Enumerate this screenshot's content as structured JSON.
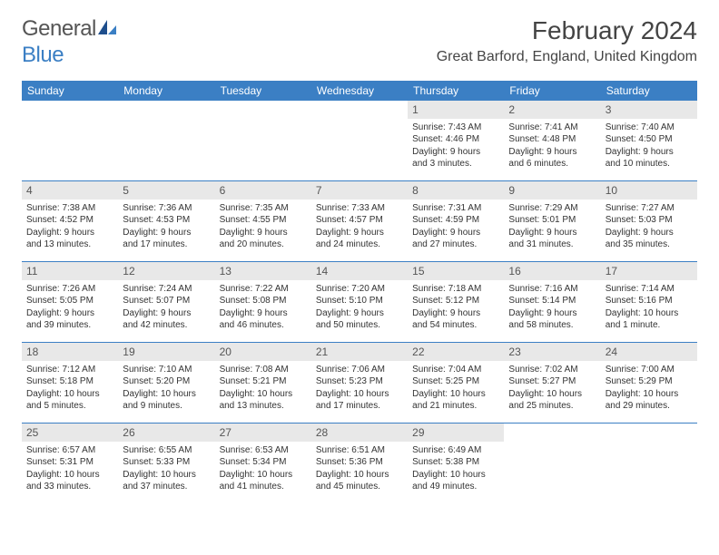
{
  "logo": {
    "text_gray": "General",
    "text_blue": "Blue"
  },
  "header": {
    "month_title": "February 2024",
    "location": "Great Barford, England, United Kingdom"
  },
  "colors": {
    "accent": "#3b7fc4",
    "daynum_bg": "#e8e8e8",
    "text": "#333333",
    "header_text": "#444444"
  },
  "day_names": [
    "Sunday",
    "Monday",
    "Tuesday",
    "Wednesday",
    "Thursday",
    "Friday",
    "Saturday"
  ],
  "weeks": [
    [
      {
        "empty": true
      },
      {
        "empty": true
      },
      {
        "empty": true
      },
      {
        "empty": true
      },
      {
        "day": "1",
        "sunrise": "Sunrise: 7:43 AM",
        "sunset": "Sunset: 4:46 PM",
        "daylight1": "Daylight: 9 hours",
        "daylight2": "and 3 minutes."
      },
      {
        "day": "2",
        "sunrise": "Sunrise: 7:41 AM",
        "sunset": "Sunset: 4:48 PM",
        "daylight1": "Daylight: 9 hours",
        "daylight2": "and 6 minutes."
      },
      {
        "day": "3",
        "sunrise": "Sunrise: 7:40 AM",
        "sunset": "Sunset: 4:50 PM",
        "daylight1": "Daylight: 9 hours",
        "daylight2": "and 10 minutes."
      }
    ],
    [
      {
        "day": "4",
        "sunrise": "Sunrise: 7:38 AM",
        "sunset": "Sunset: 4:52 PM",
        "daylight1": "Daylight: 9 hours",
        "daylight2": "and 13 minutes."
      },
      {
        "day": "5",
        "sunrise": "Sunrise: 7:36 AM",
        "sunset": "Sunset: 4:53 PM",
        "daylight1": "Daylight: 9 hours",
        "daylight2": "and 17 minutes."
      },
      {
        "day": "6",
        "sunrise": "Sunrise: 7:35 AM",
        "sunset": "Sunset: 4:55 PM",
        "daylight1": "Daylight: 9 hours",
        "daylight2": "and 20 minutes."
      },
      {
        "day": "7",
        "sunrise": "Sunrise: 7:33 AM",
        "sunset": "Sunset: 4:57 PM",
        "daylight1": "Daylight: 9 hours",
        "daylight2": "and 24 minutes."
      },
      {
        "day": "8",
        "sunrise": "Sunrise: 7:31 AM",
        "sunset": "Sunset: 4:59 PM",
        "daylight1": "Daylight: 9 hours",
        "daylight2": "and 27 minutes."
      },
      {
        "day": "9",
        "sunrise": "Sunrise: 7:29 AM",
        "sunset": "Sunset: 5:01 PM",
        "daylight1": "Daylight: 9 hours",
        "daylight2": "and 31 minutes."
      },
      {
        "day": "10",
        "sunrise": "Sunrise: 7:27 AM",
        "sunset": "Sunset: 5:03 PM",
        "daylight1": "Daylight: 9 hours",
        "daylight2": "and 35 minutes."
      }
    ],
    [
      {
        "day": "11",
        "sunrise": "Sunrise: 7:26 AM",
        "sunset": "Sunset: 5:05 PM",
        "daylight1": "Daylight: 9 hours",
        "daylight2": "and 39 minutes."
      },
      {
        "day": "12",
        "sunrise": "Sunrise: 7:24 AM",
        "sunset": "Sunset: 5:07 PM",
        "daylight1": "Daylight: 9 hours",
        "daylight2": "and 42 minutes."
      },
      {
        "day": "13",
        "sunrise": "Sunrise: 7:22 AM",
        "sunset": "Sunset: 5:08 PM",
        "daylight1": "Daylight: 9 hours",
        "daylight2": "and 46 minutes."
      },
      {
        "day": "14",
        "sunrise": "Sunrise: 7:20 AM",
        "sunset": "Sunset: 5:10 PM",
        "daylight1": "Daylight: 9 hours",
        "daylight2": "and 50 minutes."
      },
      {
        "day": "15",
        "sunrise": "Sunrise: 7:18 AM",
        "sunset": "Sunset: 5:12 PM",
        "daylight1": "Daylight: 9 hours",
        "daylight2": "and 54 minutes."
      },
      {
        "day": "16",
        "sunrise": "Sunrise: 7:16 AM",
        "sunset": "Sunset: 5:14 PM",
        "daylight1": "Daylight: 9 hours",
        "daylight2": "and 58 minutes."
      },
      {
        "day": "17",
        "sunrise": "Sunrise: 7:14 AM",
        "sunset": "Sunset: 5:16 PM",
        "daylight1": "Daylight: 10 hours",
        "daylight2": "and 1 minute."
      }
    ],
    [
      {
        "day": "18",
        "sunrise": "Sunrise: 7:12 AM",
        "sunset": "Sunset: 5:18 PM",
        "daylight1": "Daylight: 10 hours",
        "daylight2": "and 5 minutes."
      },
      {
        "day": "19",
        "sunrise": "Sunrise: 7:10 AM",
        "sunset": "Sunset: 5:20 PM",
        "daylight1": "Daylight: 10 hours",
        "daylight2": "and 9 minutes."
      },
      {
        "day": "20",
        "sunrise": "Sunrise: 7:08 AM",
        "sunset": "Sunset: 5:21 PM",
        "daylight1": "Daylight: 10 hours",
        "daylight2": "and 13 minutes."
      },
      {
        "day": "21",
        "sunrise": "Sunrise: 7:06 AM",
        "sunset": "Sunset: 5:23 PM",
        "daylight1": "Daylight: 10 hours",
        "daylight2": "and 17 minutes."
      },
      {
        "day": "22",
        "sunrise": "Sunrise: 7:04 AM",
        "sunset": "Sunset: 5:25 PM",
        "daylight1": "Daylight: 10 hours",
        "daylight2": "and 21 minutes."
      },
      {
        "day": "23",
        "sunrise": "Sunrise: 7:02 AM",
        "sunset": "Sunset: 5:27 PM",
        "daylight1": "Daylight: 10 hours",
        "daylight2": "and 25 minutes."
      },
      {
        "day": "24",
        "sunrise": "Sunrise: 7:00 AM",
        "sunset": "Sunset: 5:29 PM",
        "daylight1": "Daylight: 10 hours",
        "daylight2": "and 29 minutes."
      }
    ],
    [
      {
        "day": "25",
        "sunrise": "Sunrise: 6:57 AM",
        "sunset": "Sunset: 5:31 PM",
        "daylight1": "Daylight: 10 hours",
        "daylight2": "and 33 minutes."
      },
      {
        "day": "26",
        "sunrise": "Sunrise: 6:55 AM",
        "sunset": "Sunset: 5:33 PM",
        "daylight1": "Daylight: 10 hours",
        "daylight2": "and 37 minutes."
      },
      {
        "day": "27",
        "sunrise": "Sunrise: 6:53 AM",
        "sunset": "Sunset: 5:34 PM",
        "daylight1": "Daylight: 10 hours",
        "daylight2": "and 41 minutes."
      },
      {
        "day": "28",
        "sunrise": "Sunrise: 6:51 AM",
        "sunset": "Sunset: 5:36 PM",
        "daylight1": "Daylight: 10 hours",
        "daylight2": "and 45 minutes."
      },
      {
        "day": "29",
        "sunrise": "Sunrise: 6:49 AM",
        "sunset": "Sunset: 5:38 PM",
        "daylight1": "Daylight: 10 hours",
        "daylight2": "and 49 minutes."
      },
      {
        "empty": true
      },
      {
        "empty": true
      }
    ]
  ]
}
